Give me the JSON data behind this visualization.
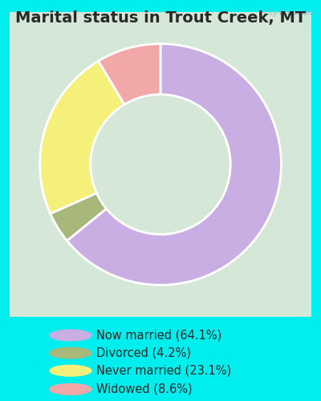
{
  "title": "Marital status in Trout Creek, MT",
  "slices": [
    64.1,
    4.2,
    23.1,
    8.6
  ],
  "labels": [
    "Now married (64.1%)",
    "Divorced (4.2%)",
    "Never married (23.1%)",
    "Widowed (8.6%)"
  ],
  "colors": [
    "#c9aee3",
    "#a8b87a",
    "#f5f07a",
    "#f2a8a8"
  ],
  "background_color": "#00eeee",
  "chart_box_color": "#d8ede0",
  "title_color": "#2a2a2a",
  "title_fontsize": 14,
  "legend_fontsize": 10.5,
  "donut_width": 0.42,
  "watermark": "City-Data.com",
  "legend_circle_size": 10
}
